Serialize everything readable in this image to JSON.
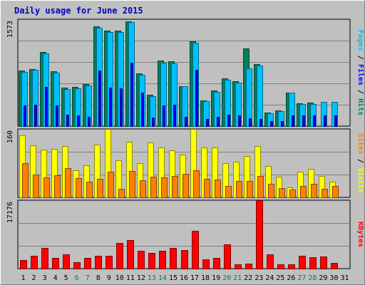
{
  "chart_data": {
    "type": "bar",
    "title": "Daily usage for June 2015",
    "categories": [
      "1",
      "2",
      "3",
      "4",
      "5",
      "6",
      "7",
      "8",
      "9",
      "10",
      "11",
      "12",
      "13",
      "14",
      "15",
      "16",
      "17",
      "18",
      "19",
      "20",
      "21",
      "22",
      "23",
      "24",
      "25",
      "26",
      "27",
      "28",
      "29",
      "30",
      "31"
    ],
    "weekend_days": [
      "6",
      "7",
      "13",
      "14",
      "20",
      "21",
      "27",
      "28"
    ],
    "panels": [
      {
        "id": "hits-files-pages",
        "ymax_label": "1573",
        "ylim": [
          0,
          1573
        ],
        "right_label_parts": [
          {
            "text": "Pages",
            "color": "#00c0ff"
          },
          {
            "text": " / ",
            "color": "#000000"
          },
          {
            "text": "Files",
            "color": "#0000ff"
          },
          {
            "text": " / ",
            "color": "#000000"
          },
          {
            "text": "Hits",
            "color": "#00805c"
          }
        ],
        "series": [
          {
            "name": "Hits",
            "color": "#00805c",
            "values": [
              820,
              840,
              1090,
              810,
              570,
              580,
              620,
              1470,
              1400,
              1400,
              1540,
              780,
              460,
              960,
              950,
              590,
              1250,
              380,
              520,
              700,
              660,
              1140,
              910,
              200,
              230,
              490,
              340,
              350,
              0,
              0,
              0
            ]
          },
          {
            "name": "Files",
            "color": "#00c0ff",
            "values": [
              800,
              830,
              1070,
              790,
              550,
              560,
              600,
              1450,
              1380,
              1380,
              1530,
              760,
              440,
              930,
              920,
              590,
              1230,
              370,
              500,
              680,
              640,
              850,
              890,
              190,
              220,
              490,
              320,
              330,
              360,
              360,
              0
            ]
          },
          {
            "name": "Pages",
            "color": "#0000ff",
            "values": [
              300,
              310,
              580,
              300,
              170,
              160,
              140,
              820,
              570,
              560,
              930,
              490,
              130,
              300,
              310,
              140,
              830,
              110,
              140,
              170,
              160,
              120,
              110,
              70,
              70,
              160,
              160,
              160,
              160,
              160,
              0
            ]
          }
        ]
      },
      {
        "id": "visits-sites",
        "ymax_label": "160",
        "ylim": [
          0,
          160
        ],
        "right_label_parts": [
          {
            "text": "Sites",
            "color": "#ff8000"
          },
          {
            "text": " / ",
            "color": "#000000"
          },
          {
            "text": "Visits",
            "color": "#ffff00"
          }
        ],
        "series": [
          {
            "name": "Visits",
            "color": "#ffff00",
            "values": [
              145,
              122,
              111,
              113,
              120,
              64,
              75,
              124,
              160,
              86,
              130,
              80,
              128,
              117,
              110,
              100,
              160,
              117,
              117,
              80,
              84,
              97,
              120,
              73,
              49,
              23,
              60,
              67,
              50,
              36,
              0
            ]
          },
          {
            "name": "Sites",
            "color": "#ff8000",
            "values": [
              80,
              53,
              47,
              52,
              68,
              45,
              36,
              44,
              60,
              20,
              62,
              40,
              49,
              47,
              50,
              55,
              64,
              44,
              42,
              27,
              38,
              38,
              50,
              32,
              22,
              19,
              26,
              32,
              20,
              27,
              0
            ]
          }
        ]
      },
      {
        "id": "kbytes",
        "ymax_label": "17176",
        "ylim": [
          0,
          17176
        ],
        "right_label_parts": [
          {
            "text": "KBytes",
            "color": "#ff0000"
          }
        ],
        "series": [
          {
            "name": "KBytes",
            "color": "#ff0000",
            "values": [
              2100,
              3200,
              5200,
              2600,
              3500,
              1600,
              2700,
              3300,
              3300,
              6500,
              7100,
              4400,
              4000,
              4400,
              5200,
              4700,
              9500,
              2400,
              2600,
              6100,
              1100,
              1300,
              17176,
              3500,
              1100,
              1100,
              3300,
              2900,
              3000,
              1400,
              0
            ]
          }
        ]
      }
    ]
  }
}
